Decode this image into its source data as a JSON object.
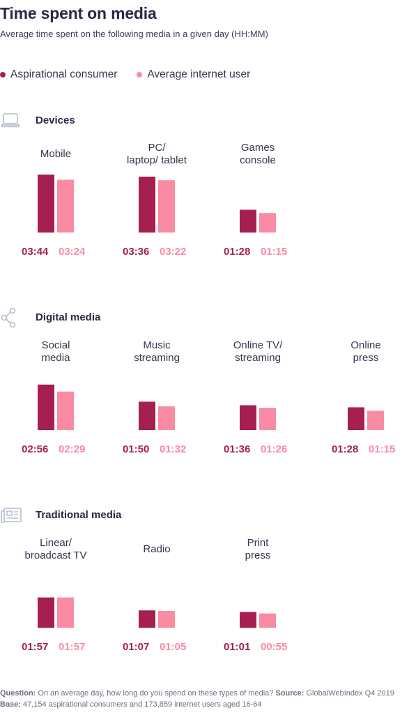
{
  "colors": {
    "aspirational": "#a51f51",
    "average": "#f98ba3",
    "icon": "#b4bccb"
  },
  "title": "Time spent on media",
  "subtitle": "Average time spent on the following media in a given day (HH:MM)",
  "legend": [
    {
      "name": "Aspirational consumer",
      "color": "#a51f51"
    },
    {
      "name": "Average internet user",
      "color": "#f98ba3"
    }
  ],
  "sections": [
    {
      "label": "Devices",
      "icon": "laptop-icon"
    },
    {
      "label": "Digital media",
      "icon": "share-icon"
    },
    {
      "label": "Traditional media",
      "icon": "newspaper-icon"
    }
  ],
  "chart_data": {
    "type": "bar",
    "title": "Time spent on media",
    "series": [
      {
        "name": "Aspirational consumer"
      },
      {
        "name": "Average internet user"
      }
    ],
    "groups": [
      {
        "section": "Devices",
        "category": "Mobile",
        "values": [
          "03:44",
          "03:24"
        ],
        "minutes": [
          224,
          204
        ]
      },
      {
        "section": "Devices",
        "category": "PC/laptop/ tablet",
        "values": [
          "03:36",
          "03:22"
        ],
        "minutes": [
          216,
          202
        ]
      },
      {
        "section": "Devices",
        "category": "Games console",
        "values": [
          "01:28",
          "01:15"
        ],
        "minutes": [
          88,
          75
        ]
      },
      {
        "section": "Digital media",
        "category": "Social media",
        "values": [
          "02:56",
          "02:29"
        ],
        "minutes": [
          176,
          149
        ]
      },
      {
        "section": "Digital media",
        "category": "Music streaming",
        "values": [
          "01:50",
          "01:32"
        ],
        "minutes": [
          110,
          92
        ]
      },
      {
        "section": "Digital media",
        "category": "Online TV/ streaming",
        "values": [
          "01:36",
          "01:26"
        ],
        "minutes": [
          96,
          86
        ]
      },
      {
        "section": "Digital media",
        "category": "Online press",
        "values": [
          "01:28",
          "01:15"
        ],
        "minutes": [
          88,
          75
        ]
      },
      {
        "section": "Traditional media",
        "category": "Linear/ broadcast TV",
        "values": [
          "01:57",
          "01:57"
        ],
        "minutes": [
          117,
          117
        ]
      },
      {
        "section": "Traditional media",
        "category": "Radio",
        "values": [
          "01:07",
          "01:05"
        ],
        "minutes": [
          67,
          65
        ]
      },
      {
        "section": "Traditional media",
        "category": "Print press",
        "values": [
          "01:01",
          "00:55"
        ],
        "minutes": [
          61,
          55
        ]
      }
    ]
  },
  "footer": {
    "question_label": "Question:",
    "question": "On an average day, how long do you spend on these types of media?",
    "source_label": "Source:",
    "source": "GlobalWebIndex Q4 2019",
    "base_label": "Base:",
    "base": "47,154 aspirational consumers and 173,859 internet users aged 16-64"
  }
}
